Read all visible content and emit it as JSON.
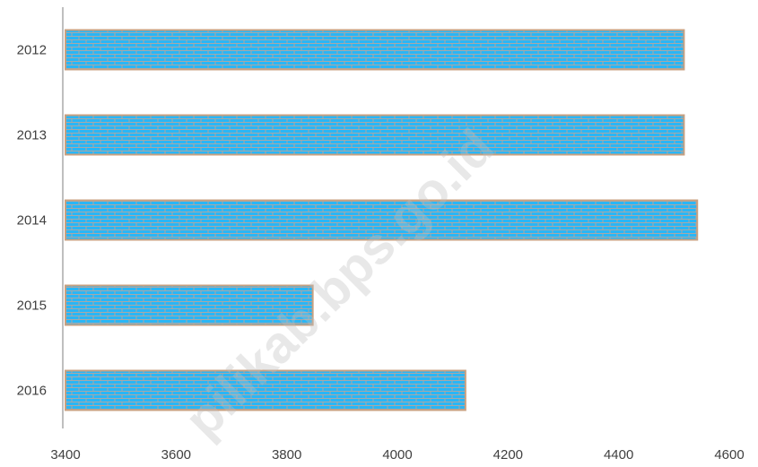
{
  "chart_data": {
    "type": "bar",
    "orientation": "horizontal",
    "title": "",
    "xlabel": "",
    "ylabel": "",
    "categories": [
      "2012",
      "2013",
      "2014",
      "2015",
      "2016"
    ],
    "values": [
      4518,
      4518,
      4542,
      3847,
      4123
    ],
    "xlim": [
      3400,
      4600
    ],
    "xticks": [
      "3400",
      "3600",
      "3800",
      "4000",
      "4200",
      "4400",
      "4600"
    ],
    "grid": false,
    "legend": "none",
    "bar_pattern": "brick",
    "colors": {
      "bar_fill": "#29b6f6",
      "bar_brick_line": "#a8a8a8",
      "bar_border": "#c8a080",
      "axis": "#bfbfbf"
    }
  },
  "watermark": {
    "text": "pilikab.bps.go.id"
  }
}
